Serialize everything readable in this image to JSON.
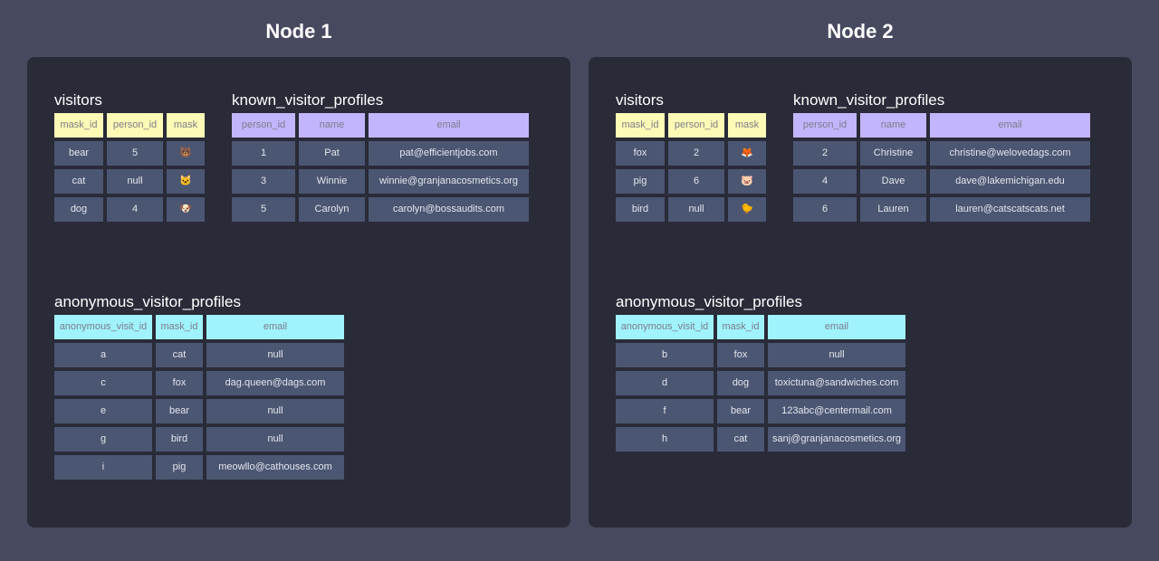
{
  "nodes": [
    {
      "title": "Node 1",
      "tables": [
        {
          "name": "visitors",
          "columns": [
            "mask_id",
            "person_id",
            "mask"
          ],
          "rows": [
            [
              "bear",
              5,
              "🐻"
            ],
            [
              "cat",
              "null",
              "🐱"
            ],
            [
              "dog",
              4,
              "🐶"
            ]
          ]
        },
        {
          "name": "known_visitor_profiles",
          "columns": [
            "person_id",
            "name",
            "email"
          ],
          "rows": [
            [
              1,
              "Pat",
              "pat@efficientjobs.com"
            ],
            [
              3,
              "Winnie",
              "winnie@granjanacosmetics.org"
            ],
            [
              5,
              "Carolyn",
              "carolyn@bossaudits.com"
            ]
          ]
        },
        {
          "name": "anonymous_visitor_profiles",
          "columns": [
            "anonymous_visit_id",
            "mask_id",
            "email"
          ],
          "rows": [
            [
              "a",
              "cat",
              "null"
            ],
            [
              "c",
              "fox",
              "dag.queen@dags.com"
            ],
            [
              "e",
              "bear",
              "null"
            ],
            [
              "g",
              "bird",
              "null"
            ],
            [
              "i",
              "pig",
              "meowllo@cathouses.com"
            ]
          ]
        }
      ]
    },
    {
      "title": "Node 2",
      "tables": [
        {
          "name": "visitors",
          "columns": [
            "mask_id",
            "person_id",
            "mask"
          ],
          "rows": [
            [
              "fox",
              2,
              "🦊"
            ],
            [
              "pig",
              6,
              "🐷"
            ],
            [
              "bird",
              "null",
              "🐤"
            ]
          ]
        },
        {
          "name": "known_visitor_profiles",
          "columns": [
            "person_id",
            "name",
            "email"
          ],
          "rows": [
            [
              2,
              "Christine",
              "christine@welovedags.com"
            ],
            [
              4,
              "Dave",
              "dave@lakemichigan.edu"
            ],
            [
              6,
              "Lauren",
              "lauren@catscatscats.net"
            ]
          ]
        },
        {
          "name": "anonymous_visitor_profiles",
          "columns": [
            "anonymous_visit_id",
            "mask_id",
            "email"
          ],
          "rows": [
            [
              "b",
              "fox",
              "null"
            ],
            [
              "d",
              "dog",
              "toxictuna@sandwiches.com"
            ],
            [
              "f",
              "bear",
              "123abc@centermail.com"
            ],
            [
              "h",
              "cat",
              "sanj@granjanacosmetics.org"
            ]
          ]
        }
      ]
    }
  ]
}
